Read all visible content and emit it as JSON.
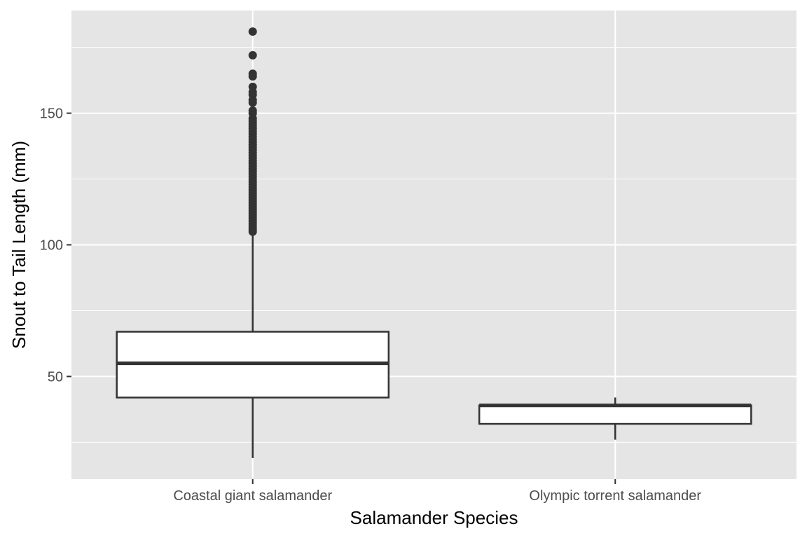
{
  "chart_data": {
    "type": "boxplot",
    "title": "",
    "xlabel": "Salamander Species",
    "ylabel": "Snout to Tail Length (mm)",
    "ylim": [
      11,
      189
    ],
    "y_ticks": [
      50,
      100,
      150
    ],
    "grid": true,
    "categories": [
      "Coastal giant salamander",
      "Olympic torrent salamander"
    ],
    "boxes": [
      {
        "category": "Coastal giant salamander",
        "whisker_low": 19,
        "q1": 42,
        "median": 55,
        "q3": 67,
        "whisker_high": 105,
        "outliers": [
          105,
          106,
          107,
          108,
          109,
          110,
          111,
          112,
          113,
          114,
          115,
          116,
          117,
          118,
          119,
          120,
          121,
          122,
          123,
          124,
          125,
          126,
          127,
          128,
          129,
          130,
          131,
          132,
          133,
          134,
          135,
          136,
          137,
          138,
          139,
          140,
          141,
          142,
          143,
          144,
          145,
          146,
          147,
          148,
          150,
          151,
          154,
          155,
          157,
          158,
          160,
          164,
          165,
          172,
          181
        ]
      },
      {
        "category": "Olympic torrent salamander",
        "whisker_low": 26,
        "q1": 32,
        "median": 39,
        "q3": 39,
        "whisker_high": 42,
        "outliers": []
      }
    ],
    "colors": {
      "panel": "#e5e5e5",
      "grid_major": "#ffffff",
      "box_fill": "#ffffff",
      "box_line": "#333333",
      "outlier": "#333333"
    }
  }
}
